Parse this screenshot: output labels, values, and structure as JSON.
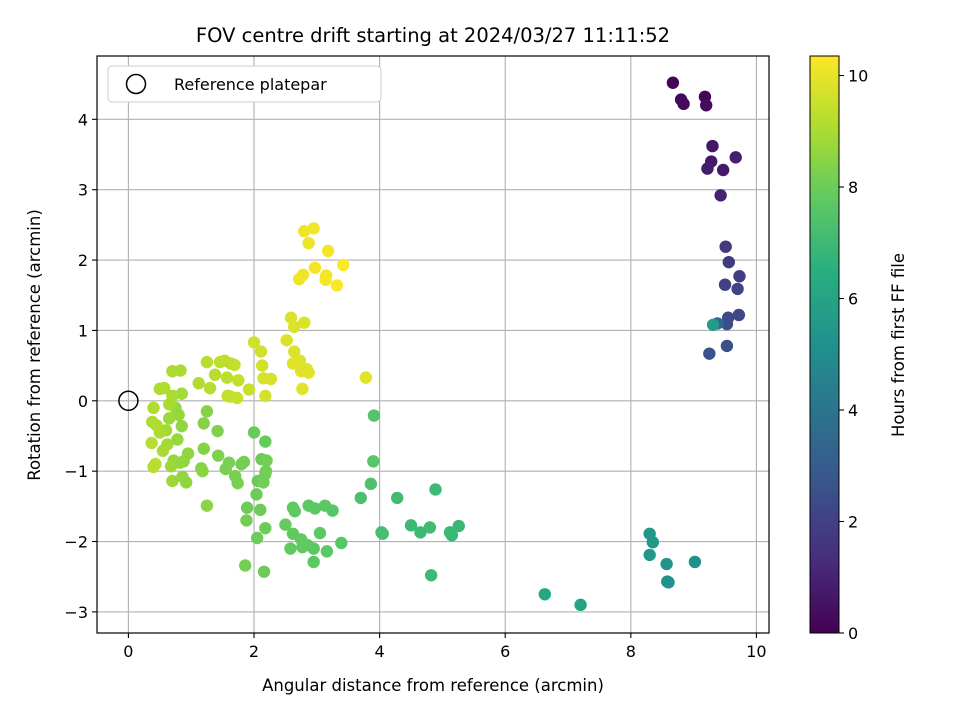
{
  "chart_data": {
    "type": "scatter",
    "title": "FOV centre drift starting at 2024/03/27 11:11:52",
    "xlabel": "Angular distance from reference (arcmin)",
    "ylabel": "Rotation from reference (arcmin)",
    "xlim": [
      -0.5,
      10.2
    ],
    "ylim": [
      -3.3,
      4.9
    ],
    "xticks": [
      0,
      2,
      4,
      6,
      8,
      10
    ],
    "yticks": [
      -3,
      -2,
      -1,
      0,
      1,
      2,
      3,
      4
    ],
    "grid": true,
    "legend": {
      "placement": "top-left",
      "entries": [
        {
          "label": "Reference platepar",
          "marker": "open-circle"
        }
      ]
    },
    "reference_point": {
      "x": 0,
      "y": 0
    },
    "colorbar": {
      "label": "Hours from first FF file",
      "colormap": "viridis",
      "range": [
        0,
        10.35
      ],
      "ticks": [
        0,
        2,
        4,
        6,
        8,
        10
      ]
    },
    "points": [
      {
        "x": 8.67,
        "y": 4.52,
        "h": 0.1
      },
      {
        "x": 8.8,
        "y": 4.28,
        "h": 0.2
      },
      {
        "x": 8.84,
        "y": 4.22,
        "h": 0.25
      },
      {
        "x": 9.18,
        "y": 4.32,
        "h": 0.15
      },
      {
        "x": 9.2,
        "y": 4.2,
        "h": 0.3
      },
      {
        "x": 9.3,
        "y": 3.62,
        "h": 0.6
      },
      {
        "x": 9.28,
        "y": 3.4,
        "h": 0.7
      },
      {
        "x": 9.22,
        "y": 3.3,
        "h": 0.8
      },
      {
        "x": 9.47,
        "y": 3.28,
        "h": 0.7
      },
      {
        "x": 9.67,
        "y": 3.46,
        "h": 0.9
      },
      {
        "x": 9.43,
        "y": 2.92,
        "h": 1.0
      },
      {
        "x": 9.51,
        "y": 2.19,
        "h": 1.7
      },
      {
        "x": 9.56,
        "y": 1.97,
        "h": 1.8
      },
      {
        "x": 9.73,
        "y": 1.77,
        "h": 1.9
      },
      {
        "x": 9.5,
        "y": 1.65,
        "h": 2.0
      },
      {
        "x": 9.7,
        "y": 1.59,
        "h": 2.1
      },
      {
        "x": 9.72,
        "y": 1.22,
        "h": 2.2
      },
      {
        "x": 9.55,
        "y": 1.18,
        "h": 2.3
      },
      {
        "x": 9.53,
        "y": 1.09,
        "h": 2.4
      },
      {
        "x": 9.38,
        "y": 1.1,
        "h": 3.5
      },
      {
        "x": 9.31,
        "y": 1.08,
        "h": 5.6
      },
      {
        "x": 9.25,
        "y": 0.67,
        "h": 2.6
      },
      {
        "x": 9.53,
        "y": 0.78,
        "h": 2.5
      },
      {
        "x": 8.3,
        "y": -1.89,
        "h": 5.4
      },
      {
        "x": 8.35,
        "y": -2.01,
        "h": 5.5
      },
      {
        "x": 8.3,
        "y": -2.19,
        "h": 5.5
      },
      {
        "x": 8.57,
        "y": -2.32,
        "h": 5.3
      },
      {
        "x": 8.58,
        "y": -2.57,
        "h": 5.2
      },
      {
        "x": 8.6,
        "y": -2.58,
        "h": 5.2
      },
      {
        "x": 9.02,
        "y": -2.29,
        "h": 5.1
      },
      {
        "x": 6.63,
        "y": -2.75,
        "h": 6.1
      },
      {
        "x": 7.2,
        "y": -2.9,
        "h": 6.0
      },
      {
        "x": 3.91,
        "y": -0.21,
        "h": 7.5
      },
      {
        "x": 3.9,
        "y": -0.86,
        "h": 7.6
      },
      {
        "x": 3.86,
        "y": -1.18,
        "h": 7.4
      },
      {
        "x": 3.7,
        "y": -1.38,
        "h": 7.3
      },
      {
        "x": 4.03,
        "y": -1.87,
        "h": 7.2
      },
      {
        "x": 4.05,
        "y": -1.89,
        "h": 7.2
      },
      {
        "x": 4.28,
        "y": -1.38,
        "h": 7.1
      },
      {
        "x": 4.5,
        "y": -1.77,
        "h": 7.0
      },
      {
        "x": 4.65,
        "y": -1.87,
        "h": 7.0
      },
      {
        "x": 4.8,
        "y": -1.8,
        "h": 7.1
      },
      {
        "x": 4.89,
        "y": -1.26,
        "h": 7.0
      },
      {
        "x": 5.12,
        "y": -1.87,
        "h": 7.0
      },
      {
        "x": 5.15,
        "y": -1.91,
        "h": 6.9
      },
      {
        "x": 5.26,
        "y": -1.78,
        "h": 6.9
      },
      {
        "x": 4.82,
        "y": -2.48,
        "h": 7.0
      },
      {
        "x": 2.62,
        "y": -1.52,
        "h": 7.8
      },
      {
        "x": 2.65,
        "y": -1.57,
        "h": 7.8
      },
      {
        "x": 2.87,
        "y": -1.49,
        "h": 7.7
      },
      {
        "x": 2.97,
        "y": -1.53,
        "h": 7.7
      },
      {
        "x": 3.13,
        "y": -1.49,
        "h": 7.7
      },
      {
        "x": 3.25,
        "y": -1.56,
        "h": 7.6
      },
      {
        "x": 2.5,
        "y": -1.76,
        "h": 7.9
      },
      {
        "x": 2.62,
        "y": -1.89,
        "h": 7.8
      },
      {
        "x": 2.75,
        "y": -1.97,
        "h": 7.8
      },
      {
        "x": 2.85,
        "y": -2.05,
        "h": 7.8
      },
      {
        "x": 2.95,
        "y": -2.1,
        "h": 7.7
      },
      {
        "x": 3.05,
        "y": -1.88,
        "h": 7.7
      },
      {
        "x": 2.58,
        "y": -2.1,
        "h": 7.8
      },
      {
        "x": 2.77,
        "y": -2.08,
        "h": 7.8
      },
      {
        "x": 2.95,
        "y": -2.29,
        "h": 7.7
      },
      {
        "x": 3.16,
        "y": -2.14,
        "h": 7.7
      },
      {
        "x": 3.39,
        "y": -2.02,
        "h": 7.6
      },
      {
        "x": 2.0,
        "y": -0.45,
        "h": 7.9
      },
      {
        "x": 2.18,
        "y": -0.58,
        "h": 7.9
      },
      {
        "x": 2.18,
        "y": -1.04,
        "h": 7.9
      },
      {
        "x": 2.06,
        "y": -1.14,
        "h": 8.0
      },
      {
        "x": 2.04,
        "y": -1.33,
        "h": 8.0
      },
      {
        "x": 2.1,
        "y": -1.55,
        "h": 8.0
      },
      {
        "x": 1.89,
        "y": -1.52,
        "h": 8.0
      },
      {
        "x": 1.88,
        "y": -1.7,
        "h": 8.1
      },
      {
        "x": 2.18,
        "y": -1.81,
        "h": 8.0
      },
      {
        "x": 2.05,
        "y": -1.95,
        "h": 8.0
      },
      {
        "x": 1.86,
        "y": -2.34,
        "h": 8.1
      },
      {
        "x": 2.16,
        "y": -2.43,
        "h": 8.0
      },
      {
        "x": 2.12,
        "y": -0.83,
        "h": 8.0
      },
      {
        "x": 2.2,
        "y": -0.85,
        "h": 8.1
      },
      {
        "x": 2.19,
        "y": -1.0,
        "h": 8.1
      },
      {
        "x": 2.15,
        "y": -1.16,
        "h": 8.1
      },
      {
        "x": 1.84,
        "y": -0.87,
        "h": 8.1
      },
      {
        "x": 1.8,
        "y": -0.9,
        "h": 8.1
      },
      {
        "x": 1.6,
        "y": -0.88,
        "h": 8.2
      },
      {
        "x": 1.55,
        "y": -0.97,
        "h": 8.2
      },
      {
        "x": 1.7,
        "y": -1.07,
        "h": 8.2
      },
      {
        "x": 1.74,
        "y": -1.17,
        "h": 8.2
      },
      {
        "x": 1.43,
        "y": -0.78,
        "h": 8.3
      },
      {
        "x": 1.42,
        "y": -0.43,
        "h": 8.3
      },
      {
        "x": 1.25,
        "y": -0.15,
        "h": 8.4
      },
      {
        "x": 1.2,
        "y": -0.32,
        "h": 8.4
      },
      {
        "x": 1.2,
        "y": -0.68,
        "h": 8.4
      },
      {
        "x": 1.16,
        "y": -0.96,
        "h": 8.4
      },
      {
        "x": 1.18,
        "y": -1.0,
        "h": 8.5
      },
      {
        "x": 1.25,
        "y": -1.49,
        "h": 8.5
      },
      {
        "x": 0.95,
        "y": -0.75,
        "h": 8.6
      },
      {
        "x": 0.92,
        "y": -1.16,
        "h": 8.6
      },
      {
        "x": 0.86,
        "y": -1.08,
        "h": 8.6
      },
      {
        "x": 0.85,
        "y": -0.36,
        "h": 8.6
      },
      {
        "x": 0.8,
        "y": -0.2,
        "h": 8.7
      },
      {
        "x": 0.75,
        "y": -0.1,
        "h": 8.7
      },
      {
        "x": 0.72,
        "y": -0.85,
        "h": 8.7
      },
      {
        "x": 0.7,
        "y": -1.14,
        "h": 8.8
      },
      {
        "x": 0.68,
        "y": -0.93,
        "h": 8.8
      },
      {
        "x": 0.62,
        "y": -0.62,
        "h": 8.9
      },
      {
        "x": 0.6,
        "y": -0.42,
        "h": 8.9
      },
      {
        "x": 0.55,
        "y": -0.71,
        "h": 9.0
      },
      {
        "x": 0.5,
        "y": -0.45,
        "h": 9.0
      },
      {
        "x": 0.45,
        "y": -0.35,
        "h": 9.1
      },
      {
        "x": 0.4,
        "y": -0.1,
        "h": 9.1
      },
      {
        "x": 0.38,
        "y": -0.3,
        "h": 9.1
      },
      {
        "x": 0.37,
        "y": -0.6,
        "h": 9.2
      },
      {
        "x": 0.4,
        "y": -0.94,
        "h": 9.2
      },
      {
        "x": 0.43,
        "y": -0.9,
        "h": 9.2
      },
      {
        "x": 0.78,
        "y": -0.55,
        "h": 8.7
      },
      {
        "x": 0.82,
        "y": -0.88,
        "h": 8.7
      },
      {
        "x": 0.88,
        "y": -0.86,
        "h": 8.6
      },
      {
        "x": 0.65,
        "y": -0.25,
        "h": 8.8
      },
      {
        "x": 0.85,
        "y": 0.1,
        "h": 8.9
      },
      {
        "x": 0.7,
        "y": 0.07,
        "h": 9.0
      },
      {
        "x": 0.65,
        "y": -0.05,
        "h": 9.0
      },
      {
        "x": 0.57,
        "y": 0.18,
        "h": 9.1
      },
      {
        "x": 0.5,
        "y": 0.17,
        "h": 9.1
      },
      {
        "x": 0.7,
        "y": 0.42,
        "h": 9.0
      },
      {
        "x": 0.83,
        "y": 0.43,
        "h": 9.0
      },
      {
        "x": 1.12,
        "y": 0.25,
        "h": 9.1
      },
      {
        "x": 1.3,
        "y": 0.18,
        "h": 9.2
      },
      {
        "x": 1.25,
        "y": 0.55,
        "h": 9.2
      },
      {
        "x": 1.38,
        "y": 0.37,
        "h": 9.2
      },
      {
        "x": 1.46,
        "y": 0.55,
        "h": 9.3
      },
      {
        "x": 1.53,
        "y": 0.57,
        "h": 9.3
      },
      {
        "x": 1.57,
        "y": 0.33,
        "h": 9.3
      },
      {
        "x": 1.63,
        "y": 0.53,
        "h": 9.3
      },
      {
        "x": 1.69,
        "y": 0.51,
        "h": 9.4
      },
      {
        "x": 1.75,
        "y": 0.29,
        "h": 9.4
      },
      {
        "x": 1.58,
        "y": 0.07,
        "h": 9.4
      },
      {
        "x": 1.62,
        "y": 0.06,
        "h": 9.4
      },
      {
        "x": 1.73,
        "y": 0.04,
        "h": 9.5
      },
      {
        "x": 1.92,
        "y": 0.16,
        "h": 9.5
      },
      {
        "x": 2.0,
        "y": 0.83,
        "h": 9.6
      },
      {
        "x": 2.11,
        "y": 0.7,
        "h": 9.6
      },
      {
        "x": 2.13,
        "y": 0.5,
        "h": 9.6
      },
      {
        "x": 2.15,
        "y": 0.32,
        "h": 9.7
      },
      {
        "x": 2.27,
        "y": 0.31,
        "h": 9.7
      },
      {
        "x": 2.18,
        "y": 0.07,
        "h": 9.7
      },
      {
        "x": 2.52,
        "y": 0.86,
        "h": 9.8
      },
      {
        "x": 2.59,
        "y": 1.18,
        "h": 9.8
      },
      {
        "x": 2.64,
        "y": 1.05,
        "h": 9.8
      },
      {
        "x": 2.8,
        "y": 1.11,
        "h": 9.8
      },
      {
        "x": 2.64,
        "y": 0.7,
        "h": 9.8
      },
      {
        "x": 2.62,
        "y": 0.53,
        "h": 9.9
      },
      {
        "x": 2.73,
        "y": 0.57,
        "h": 9.9
      },
      {
        "x": 2.75,
        "y": 0.42,
        "h": 9.9
      },
      {
        "x": 2.84,
        "y": 0.45,
        "h": 9.9
      },
      {
        "x": 2.87,
        "y": 0.4,
        "h": 9.9
      },
      {
        "x": 2.77,
        "y": 0.17,
        "h": 9.9
      },
      {
        "x": 3.78,
        "y": 0.33,
        "h": 9.9
      },
      {
        "x": 2.8,
        "y": 2.41,
        "h": 10.1
      },
      {
        "x": 2.95,
        "y": 2.45,
        "h": 10.2
      },
      {
        "x": 2.87,
        "y": 2.24,
        "h": 10.1
      },
      {
        "x": 2.78,
        "y": 1.79,
        "h": 10.1
      },
      {
        "x": 2.72,
        "y": 1.73,
        "h": 10.1
      },
      {
        "x": 2.97,
        "y": 1.89,
        "h": 10.2
      },
      {
        "x": 3.15,
        "y": 1.78,
        "h": 10.2
      },
      {
        "x": 3.18,
        "y": 2.13,
        "h": 10.2
      },
      {
        "x": 3.14,
        "y": 1.72,
        "h": 10.2
      },
      {
        "x": 3.32,
        "y": 1.64,
        "h": 10.3
      },
      {
        "x": 3.42,
        "y": 1.93,
        "h": 10.3
      }
    ]
  }
}
